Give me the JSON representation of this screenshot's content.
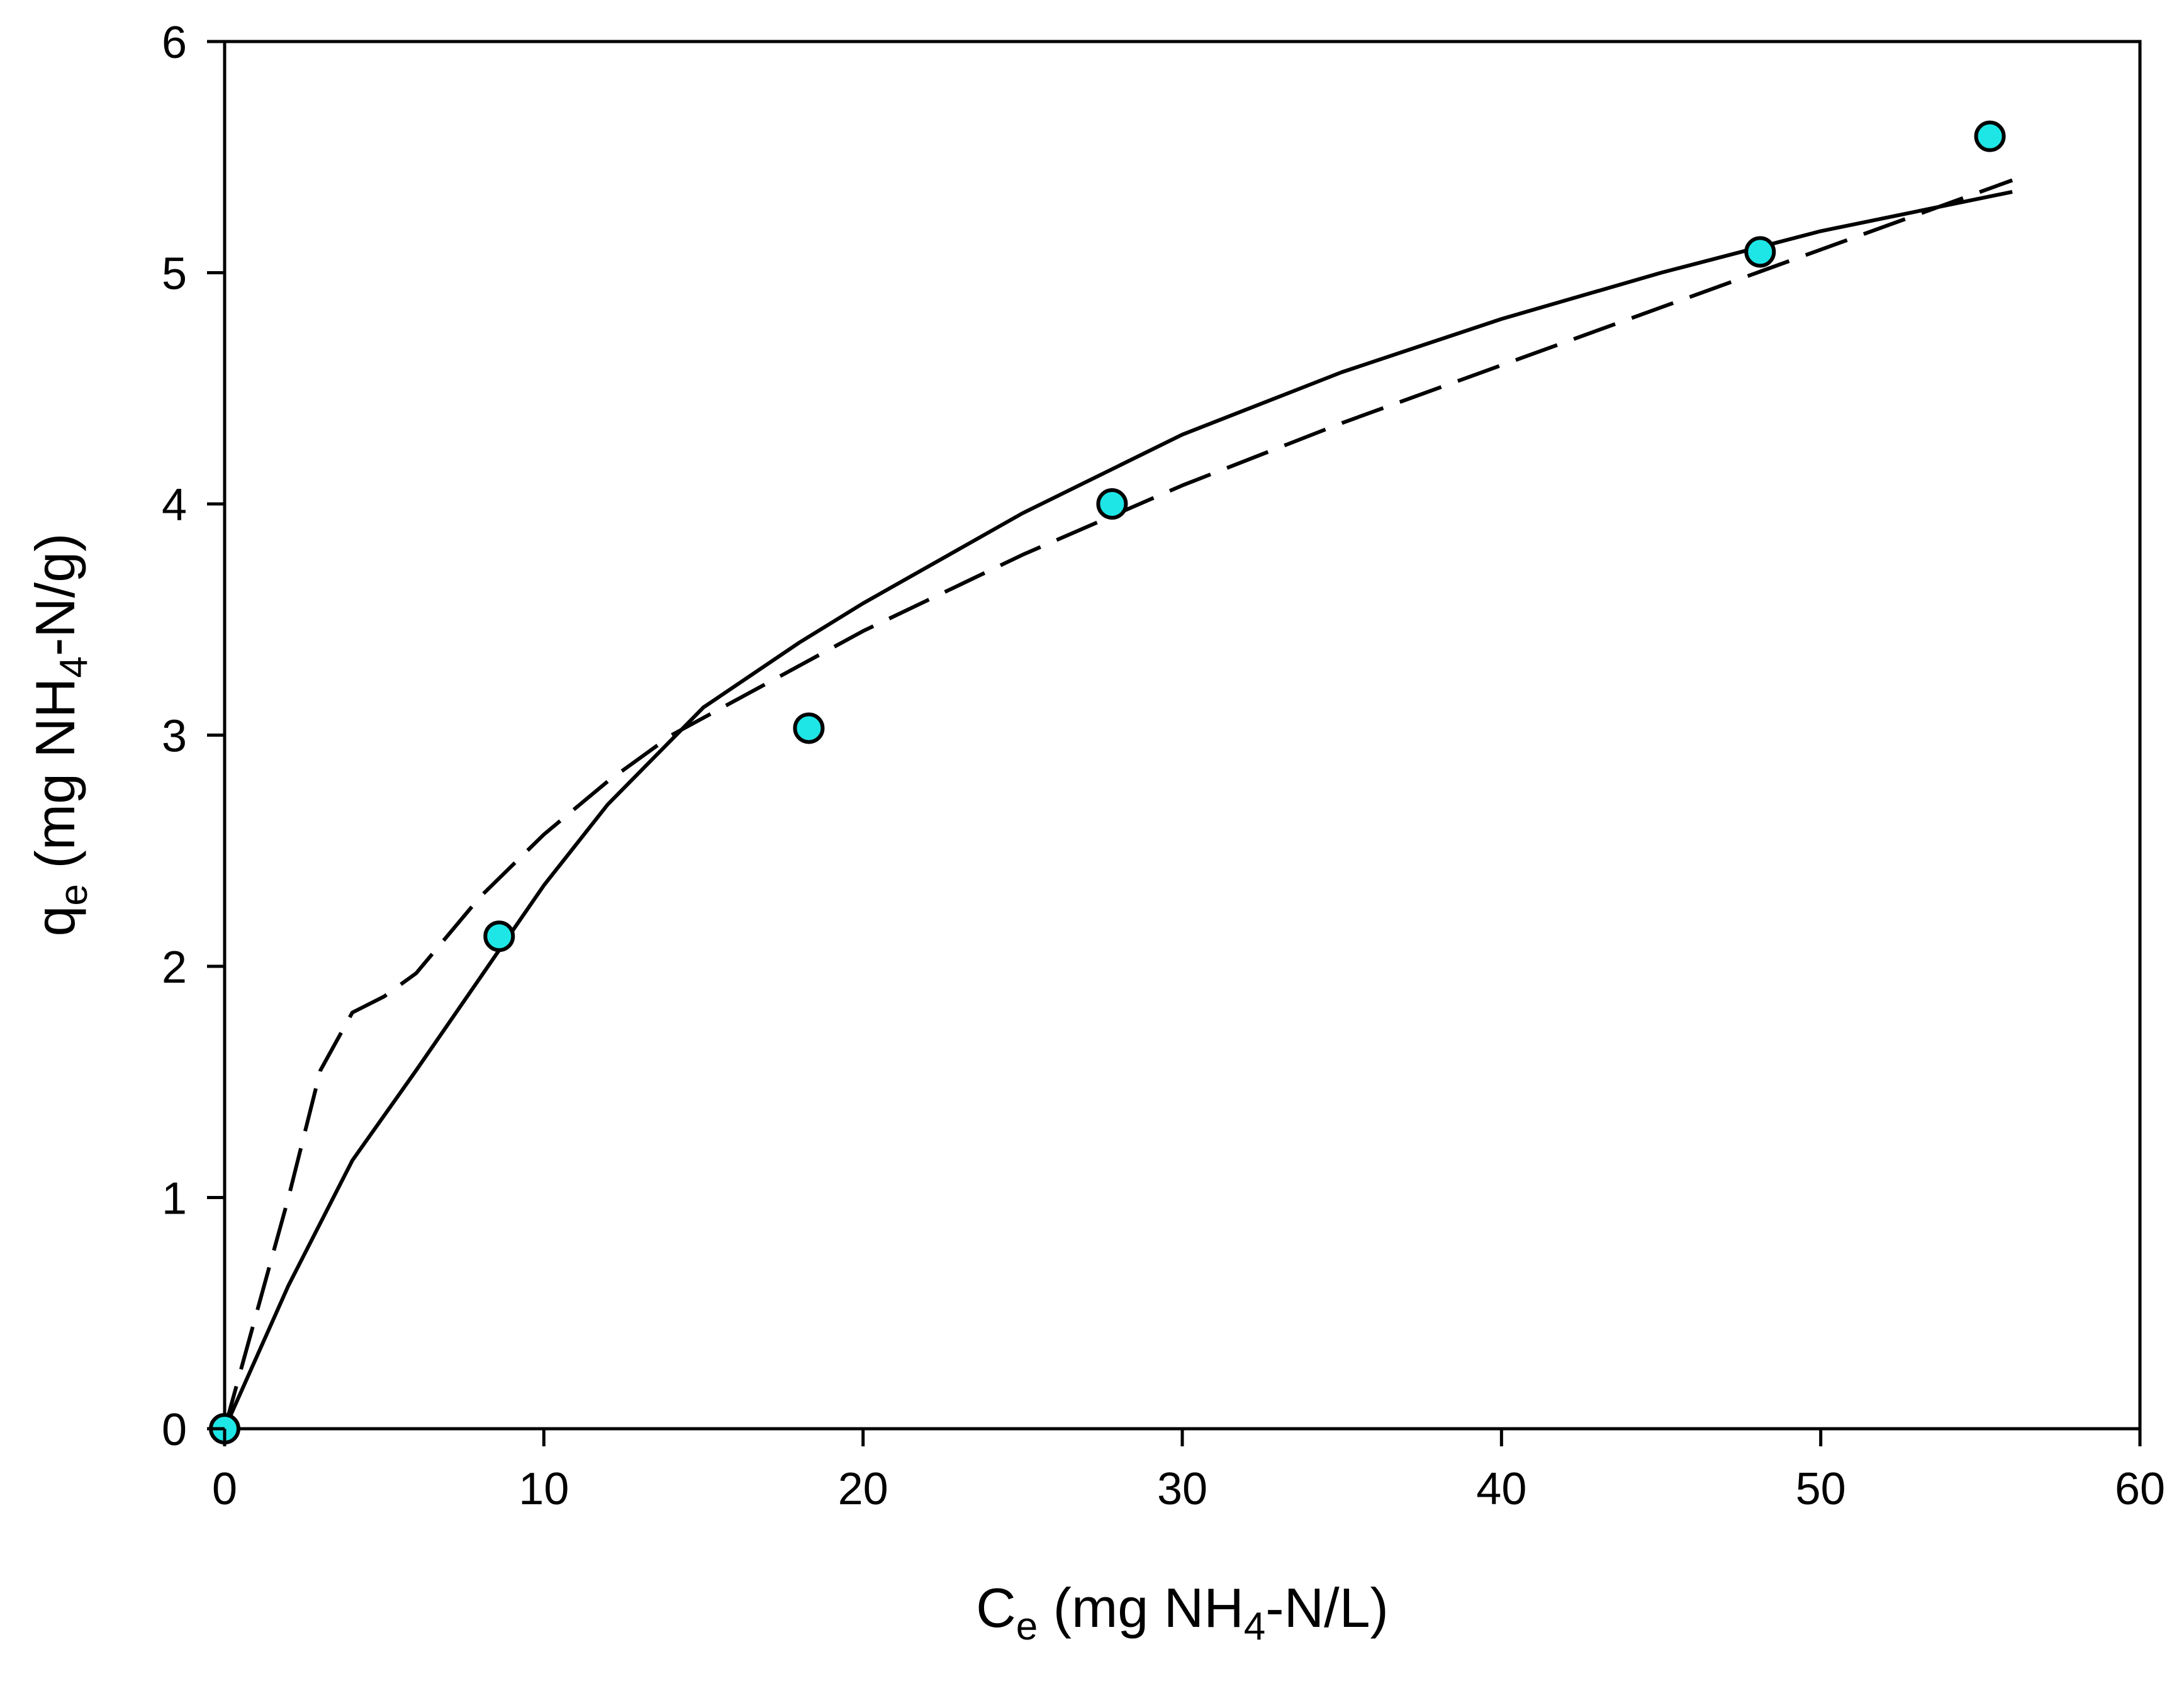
{
  "chart_data": {
    "type": "scatter",
    "title": "",
    "xlabel": {
      "main": "C",
      "sub": "e",
      "rest_pre": " (mg NH",
      "sub2": "4",
      "rest_post": "-N/L)"
    },
    "ylabel": {
      "main": "q",
      "sub": "e",
      "rest_pre": " (mg NH",
      "sub2": "4",
      "rest_post": "-N/g)"
    },
    "xlim": [
      0,
      60
    ],
    "ylim": [
      0,
      6
    ],
    "xticks": [
      "0",
      "10",
      "20",
      "30",
      "40",
      "50",
      "60"
    ],
    "yticks": [
      "0",
      "1",
      "2",
      "3",
      "4",
      "5",
      "6"
    ],
    "grid": false,
    "legend": "none",
    "colors": {
      "marker_fill": "#1fe6e6",
      "marker_stroke": "#000000",
      "line": "#000000",
      "axis": "#000000"
    },
    "series": [
      {
        "kind": "scatter",
        "x": [
          0,
          8.6,
          18.3,
          27.8,
          48.1,
          55.3
        ],
        "y": [
          0,
          2.13,
          3.03,
          4.0,
          5.09,
          5.59
        ]
      },
      {
        "kind": "line",
        "style": "solid",
        "x": [
          0,
          2,
          4,
          6,
          8,
          10,
          12,
          15,
          18,
          20,
          25,
          30,
          35,
          40,
          45,
          50,
          56
        ],
        "y": [
          0,
          0.62,
          1.16,
          1.55,
          1.95,
          2.35,
          2.7,
          3.12,
          3.4,
          3.57,
          3.96,
          4.3,
          4.57,
          4.8,
          5.0,
          5.18,
          5.35
        ]
      },
      {
        "kind": "line",
        "style": "dashed",
        "x": [
          0,
          1,
          2,
          3,
          4,
          5,
          6,
          8,
          10,
          12,
          14,
          16,
          18,
          20,
          25,
          30,
          35,
          40,
          45,
          50,
          56
        ],
        "y": [
          0,
          0.5,
          1.0,
          1.55,
          1.8,
          1.87,
          1.97,
          2.3,
          2.57,
          2.8,
          3.0,
          3.15,
          3.3,
          3.45,
          3.78,
          4.08,
          4.35,
          4.6,
          4.85,
          5.1,
          5.4
        ]
      }
    ]
  }
}
